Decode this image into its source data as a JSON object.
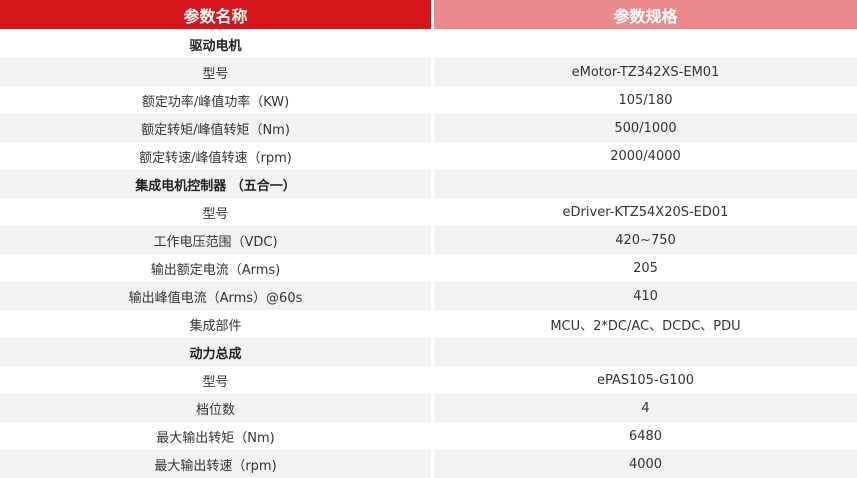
{
  "header": {
    "name": "参数名称",
    "spec": "参数规格"
  },
  "rows": [
    {
      "name": "驱动电机",
      "value": "",
      "section": true
    },
    {
      "name": "型号",
      "value": "eMotor-TZ342XS-EM01"
    },
    {
      "name": "额定功率/峰值功率（KW)",
      "value": "105/180"
    },
    {
      "name": "额定转矩/峰值转矩（Nm)",
      "value": "500/1000"
    },
    {
      "name": "额定转速/峰值转速（rpm)",
      "value": "2000/4000"
    },
    {
      "name": "集成电机控制器 （五合一）",
      "value": "",
      "section": true
    },
    {
      "name": "型号",
      "value": "eDriver-KTZ54X20S-ED01"
    },
    {
      "name": "工作电压范围（VDC)",
      "value": "420~750"
    },
    {
      "name": "输出额定电流（Arms)",
      "value": "205"
    },
    {
      "name": "输出峰值电流（Arms）@60s",
      "value": "410"
    },
    {
      "name": "集成部件",
      "value": "MCU、2*DC/AC、DCDC、PDU"
    },
    {
      "name": "动力总成",
      "value": "",
      "section": true
    },
    {
      "name": "型号",
      "value": "ePAS105-G100"
    },
    {
      "name": "档位数",
      "value": "4"
    },
    {
      "name": "最大输出转矩（Nm)",
      "value": "6480"
    },
    {
      "name": "最大输出转速（rpm)",
      "value": "4000"
    }
  ]
}
